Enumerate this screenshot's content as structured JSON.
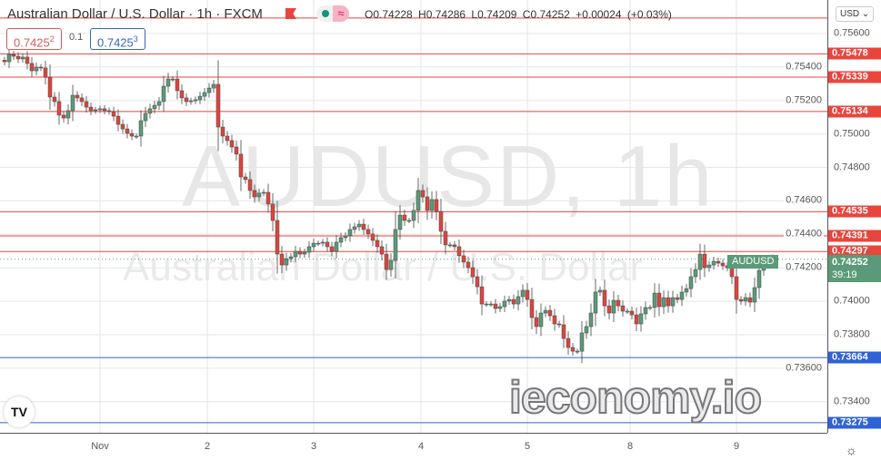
{
  "header": {
    "title": "Australian Dollar / U.S. Dollar · 1h · FXCM",
    "ohlc_text": "O0.74228 H0.74286 L0.74209 C0.74252 +0.00024 (+0.03%)",
    "sell_price": "0.7425",
    "sell_price_sup": "2",
    "spread": "0.1",
    "buy_price": "0.7425",
    "buy_price_sup": "3",
    "currency_button": "USD ⌄"
  },
  "watermark": {
    "symbol": "AUDUSD, 1h",
    "name": "Australian Dollar / U.S. Dollar"
  },
  "logo_text": "ieconomy.io",
  "tv_logo": "TV",
  "colors": {
    "up": "#5b9a79",
    "down": "#d9473f",
    "resistance": "#e8453c",
    "support": "#2f62d6",
    "grid": "#e6e6e6"
  },
  "chart_data": {
    "type": "candlestick",
    "interval": "1h",
    "symbol": "AUDUSD",
    "ylim": [
      0.7325,
      0.758
    ],
    "grid": true,
    "y_ticks": [
      "0.75600",
      "0.75400",
      "0.75200",
      "0.75000",
      "0.74800",
      "0.74600",
      "0.74400",
      "0.74200",
      "0.74000",
      "0.73800",
      "0.73600",
      "0.73400"
    ],
    "x_ticks": [
      "Nov",
      "2",
      "3",
      "4",
      "5",
      "8",
      "9"
    ],
    "first_open": 0.7544,
    "closes": [
      0.75431,
      0.75475,
      0.75464,
      0.75448,
      0.75459,
      0.75421,
      0.75377,
      0.75399,
      0.75394,
      0.75339,
      0.7522,
      0.75193,
      0.75112,
      0.75095,
      0.75139,
      0.75231,
      0.75215,
      0.75193,
      0.7516,
      0.75139,
      0.75144,
      0.7515,
      0.75139,
      0.75133,
      0.75106,
      0.75057,
      0.7503,
      0.75003,
      0.74987,
      0.74987,
      0.75079,
      0.75123,
      0.7515,
      0.75171,
      0.75193,
      0.75285,
      0.75328,
      0.75328,
      0.75258,
      0.75215,
      0.75193,
      0.75198,
      0.75204,
      0.75225,
      0.75247,
      0.75274,
      0.75296,
      0.75041,
      0.74987,
      0.7496,
      0.74922,
      0.74879,
      0.74743,
      0.74727,
      0.74662,
      0.74624,
      0.74646,
      0.74651,
      0.74581,
      0.74483,
      0.74282,
      0.74217,
      0.74255,
      0.74266,
      0.74299,
      0.74282,
      0.74293,
      0.74326,
      0.74347,
      0.74347,
      0.74353,
      0.74326,
      0.74299,
      0.74353,
      0.7438,
      0.74391,
      0.74429,
      0.74445,
      0.74461,
      0.74429,
      0.74402,
      0.74364,
      0.74326,
      0.74282,
      0.7419,
      0.74244,
      0.74429,
      0.74515,
      0.74483,
      0.74483,
      0.74543,
      0.74662,
      0.74624,
      0.74543,
      0.74608,
      0.74537,
      0.74418,
      0.74337,
      0.74337,
      0.74326,
      0.74272,
      0.74234,
      0.74201,
      0.74147,
      0.74087,
      0.73984,
      0.73984,
      0.73984,
      0.73957,
      0.73968,
      0.74001,
      0.74011,
      0.73984,
      0.74028,
      0.74066,
      0.74011,
      0.73903,
      0.73849,
      0.7393,
      0.73946,
      0.73914,
      0.73865,
      0.7386,
      0.73778,
      0.73724,
      0.73702,
      0.73702,
      0.73811,
      0.73849,
      0.7393,
      0.74055,
      0.74066,
      0.73973,
      0.7393,
      0.74006,
      0.73973,
      0.73941,
      0.73941,
      0.73919,
      0.73865,
      0.73925,
      0.73963,
      0.73963,
      0.74049,
      0.73968,
      0.74022,
      0.73973,
      0.74022,
      0.74011,
      0.74055,
      0.74076,
      0.74147,
      0.7419,
      0.74282,
      0.74201,
      0.74217,
      0.74239,
      0.74228,
      0.74212,
      0.74201,
      0.74147,
      0.74011,
      0.74001,
      0.74022,
      0.73995,
      0.74082,
      0.74185,
      0.74217,
      0.74228,
      0.74252
    ],
    "levels": [
      {
        "price": 0.75692,
        "label": "",
        "type": "resistance"
      },
      {
        "price": 0.75478,
        "label": "0.75478",
        "type": "resistance"
      },
      {
        "price": 0.75339,
        "label": "0.75339",
        "type": "resistance"
      },
      {
        "price": 0.75134,
        "label": "0.75134",
        "type": "resistance"
      },
      {
        "price": 0.74535,
        "label": "0.74535",
        "type": "resistance"
      },
      {
        "price": 0.74391,
        "label": "0.74391",
        "type": "resistance"
      },
      {
        "price": 0.74297,
        "label": "0.74297",
        "type": "resistance"
      },
      {
        "price": 0.73664,
        "label": "0.73664",
        "type": "support"
      },
      {
        "price": 0.73275,
        "label": "0.73275",
        "type": "support"
      }
    ],
    "last_price": {
      "price": 0.74252,
      "label": "0.74252",
      "countdown": "39:19",
      "tag": "AUDUSD"
    }
  }
}
